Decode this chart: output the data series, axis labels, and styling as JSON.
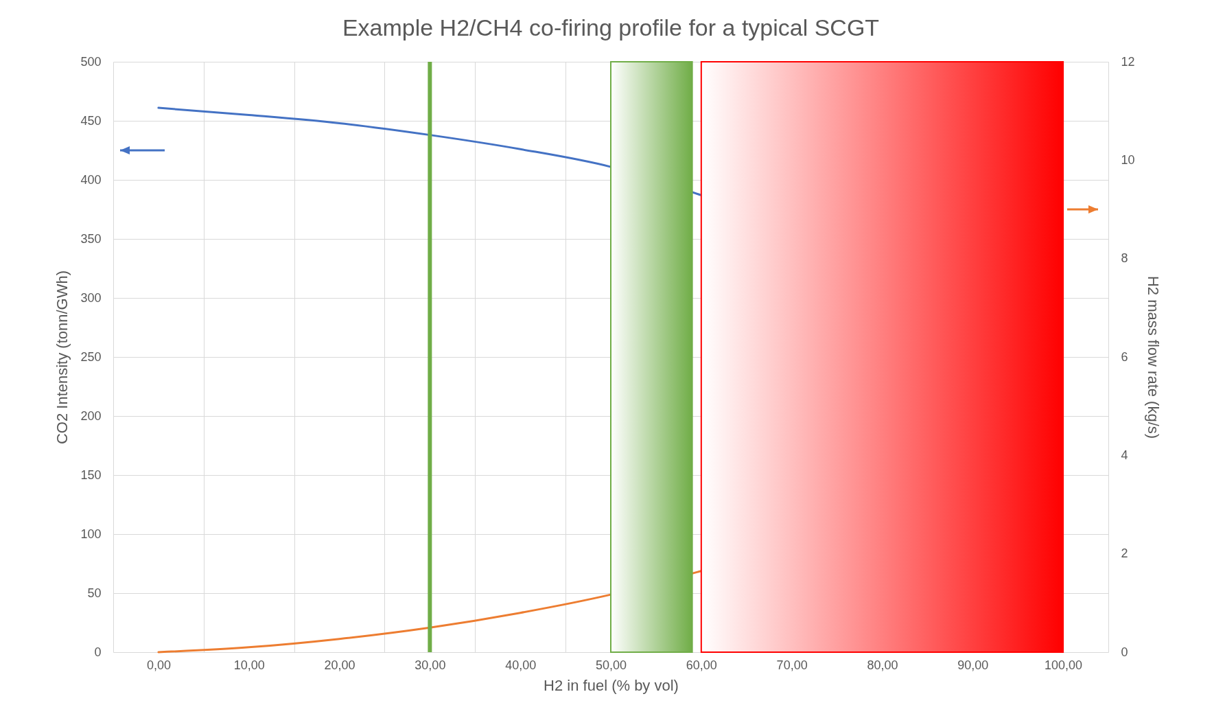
{
  "chart_data": {
    "type": "line",
    "title": "Example H2/CH4 co-firing profile for a typical SCGT",
    "xlabel": "H2 in fuel  (% by vol)",
    "ylabel": "CO2 Intensity (tonn/GWh)",
    "y2label": "H2 mass flow rate (kg/s)",
    "x": [
      0,
      10,
      20,
      30,
      40,
      50,
      60
    ],
    "series": [
      {
        "color": "#4472c4",
        "values": [
          461,
          455,
          448,
          438,
          426,
          411,
          387
        ]
      },
      {
        "color": "#ed7d31",
        "axis": "y2",
        "values": [
          0,
          0.1,
          0.27,
          0.5,
          0.8,
          1.17,
          1.65
        ]
      }
    ],
    "xlim": [
      -5,
      105
    ],
    "xticks": [
      {
        "value": -5,
        "label": null
      },
      {
        "value": 0,
        "label": "0,00"
      },
      {
        "value": 5,
        "label": null
      },
      {
        "value": 10,
        "label": "10,00"
      },
      {
        "value": 15,
        "label": null
      },
      {
        "value": 20,
        "label": "20,00"
      },
      {
        "value": 25,
        "label": null
      },
      {
        "value": 30,
        "label": "30,00"
      },
      {
        "value": 35,
        "label": null
      },
      {
        "value": 40,
        "label": "40,00"
      },
      {
        "value": 45,
        "label": null
      },
      {
        "value": 50,
        "label": "50,00"
      },
      {
        "value": 60,
        "label": "60,00"
      },
      {
        "value": 70,
        "label": "70,00"
      },
      {
        "value": 80,
        "label": "80,00"
      },
      {
        "value": 90,
        "label": "90,00"
      },
      {
        "value": 100,
        "label": "100,00"
      },
      {
        "value": 105,
        "label": null
      }
    ],
    "ylim": [
      0,
      500
    ],
    "yticks": [
      0,
      50,
      100,
      150,
      200,
      250,
      300,
      350,
      400,
      450,
      500
    ],
    "y2lim": [
      0,
      12
    ],
    "y2ticks": [
      0,
      2,
      4,
      6,
      8,
      10,
      12
    ],
    "ref_lines": [
      {
        "axis": "x",
        "value": 30,
        "color": "#70ad47"
      }
    ],
    "bands": [
      {
        "axis": "x",
        "from": 50,
        "to": 59,
        "color": "#70ad47"
      },
      {
        "axis": "x",
        "from": 60,
        "to": 100,
        "color": "#ff0000"
      }
    ],
    "grid": true,
    "marker": "none",
    "line_style": "solid"
  }
}
